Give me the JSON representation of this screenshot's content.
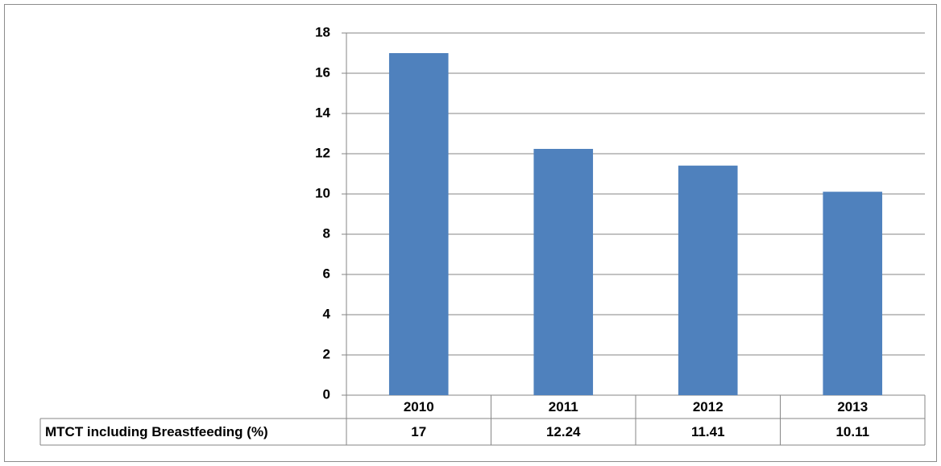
{
  "chart_data": {
    "type": "bar",
    "categories": [
      "2010",
      "2011",
      "2012",
      "2013"
    ],
    "series": [
      {
        "name": "MTCT including Breastfeeding (%)",
        "color": "#4f81bd",
        "values": [
          17,
          12.24,
          11.41,
          10.11
        ]
      }
    ],
    "ylim": [
      0,
      18
    ],
    "yticks": [
      0,
      2,
      4,
      6,
      8,
      10,
      12,
      14,
      16,
      18
    ],
    "grid": true
  }
}
